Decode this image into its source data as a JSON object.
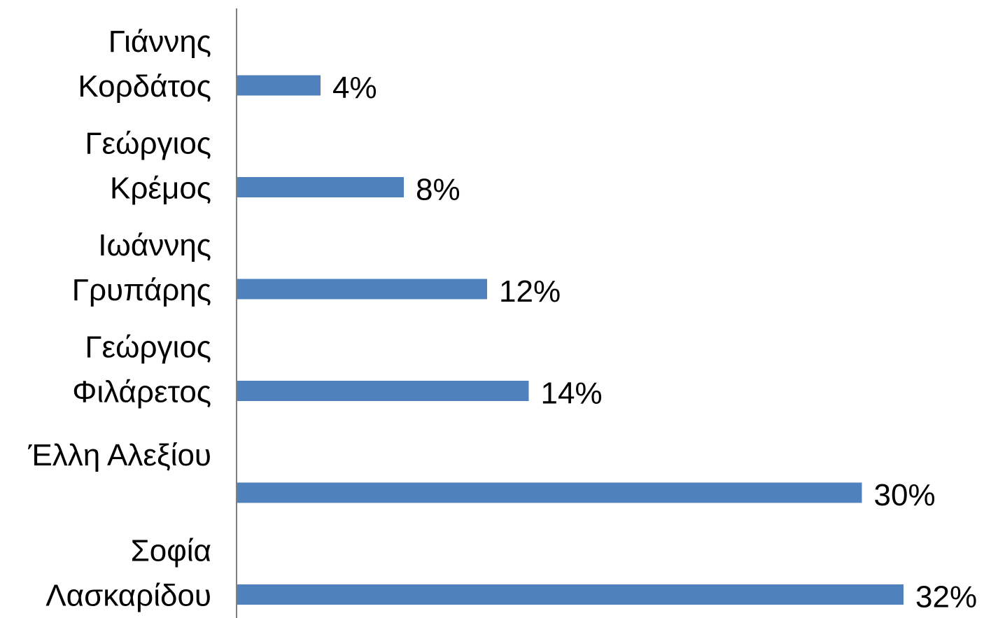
{
  "chart_data": {
    "type": "bar",
    "orientation": "horizontal",
    "categories": [
      [
        "Γιάννης",
        "Κορδάτος"
      ],
      [
        "Γεώργιος",
        "Κρέμος"
      ],
      [
        "Ιωάννης",
        "Γρυπάρης"
      ],
      [
        "Γεώργιος",
        "Φιλάρετος"
      ],
      [
        "Έλλη Αλεξίου"
      ],
      [
        "Σοφία",
        "Λασκαρίδου"
      ]
    ],
    "values": [
      4,
      8,
      12,
      14,
      30,
      32
    ],
    "value_labels": [
      "4%",
      "8%",
      "12%",
      "14%",
      "30%",
      "32%"
    ],
    "title": "",
    "xlabel": "",
    "ylabel": "",
    "xlim": [
      0,
      32
    ],
    "grid": false,
    "legend": "none",
    "bar_color": "#4F81BD",
    "axis_color": "#808080"
  }
}
